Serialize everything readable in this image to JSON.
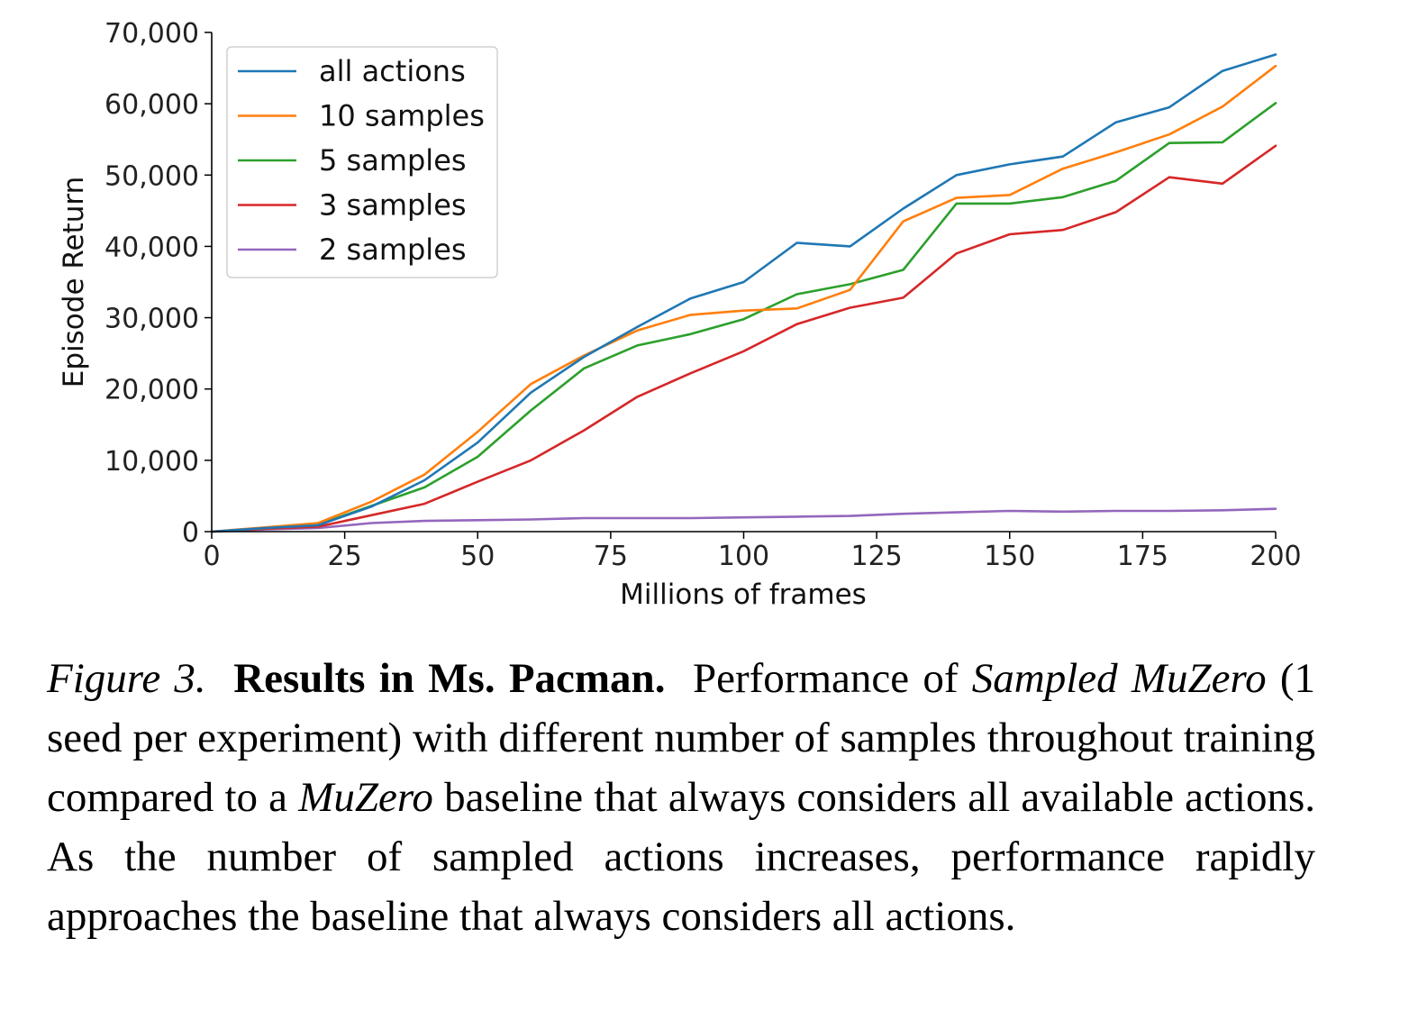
{
  "chart_data": {
    "type": "line",
    "xlabel": "Millions of frames",
    "ylabel": "Episode Return",
    "xlim": [
      0,
      200
    ],
    "ylim": [
      0,
      70000
    ],
    "xticks": [
      0,
      25,
      50,
      75,
      100,
      125,
      150,
      175,
      200
    ],
    "xtick_labels": [
      "0",
      "25",
      "50",
      "75",
      "100",
      "125",
      "150",
      "175",
      "200"
    ],
    "yticks": [
      0,
      10000,
      20000,
      30000,
      40000,
      50000,
      60000,
      70000
    ],
    "ytick_labels": [
      "0",
      "10,000",
      "20,000",
      "30,000",
      "40,000",
      "50,000",
      "60,000",
      "70,000"
    ],
    "grid": false,
    "legend_position": "top-left",
    "x": [
      0,
      10,
      20,
      30,
      40,
      50,
      60,
      70,
      80,
      90,
      100,
      110,
      120,
      130,
      140,
      150,
      160,
      170,
      180,
      190,
      200
    ],
    "series": [
      {
        "name": "all actions",
        "color": "#1f77b4",
        "values": [
          0,
          500,
          900,
          3500,
          7200,
          12500,
          19500,
          24500,
          28700,
          32700,
          35000,
          40500,
          40000,
          45300,
          50000,
          51500,
          52600,
          57400,
          59500,
          64600,
          66900
        ]
      },
      {
        "name": "10 samples",
        "color": "#ff7f0e",
        "values": [
          0,
          600,
          1200,
          4200,
          8000,
          14000,
          20700,
          24700,
          28200,
          30400,
          31000,
          31300,
          33900,
          43500,
          46800,
          47200,
          50900,
          53200,
          55700,
          59600,
          65300
        ]
      },
      {
        "name": "5 samples",
        "color": "#2ca02c",
        "values": [
          0,
          500,
          1000,
          3600,
          6200,
          10500,
          17000,
          22900,
          26100,
          27700,
          29800,
          33300,
          34700,
          36700,
          46000,
          46000,
          46900,
          49200,
          54500,
          54600,
          60100
        ]
      },
      {
        "name": "3 samples",
        "color": "#d62728",
        "values": [
          0,
          400,
          700,
          2300,
          3900,
          7000,
          10000,
          14200,
          18900,
          22200,
          25300,
          29100,
          31400,
          32800,
          39000,
          41700,
          42300,
          44800,
          49700,
          48800,
          54100
        ]
      },
      {
        "name": "2 samples",
        "color": "#9467bd",
        "values": [
          0,
          300,
          500,
          1200,
          1500,
          1600,
          1700,
          1900,
          1900,
          1900,
          2000,
          2100,
          2200,
          2500,
          2700,
          2900,
          2800,
          2900,
          2900,
          3000,
          3200
        ]
      }
    ]
  },
  "caption": {
    "figure_label": "Figure 3.",
    "bold_title": "Results in Ms.  Pacman.",
    "text_1": "Performance of",
    "italic_1": "Sampled MuZero",
    "text_2": "(1 seed per experiment) with different number of samples throughout training compared to a",
    "italic_2": "MuZero",
    "text_3": "baseline that always considers all available actions. As the number of sampled actions increases, performance rapidly approaches the baseline that always considers all actions."
  }
}
